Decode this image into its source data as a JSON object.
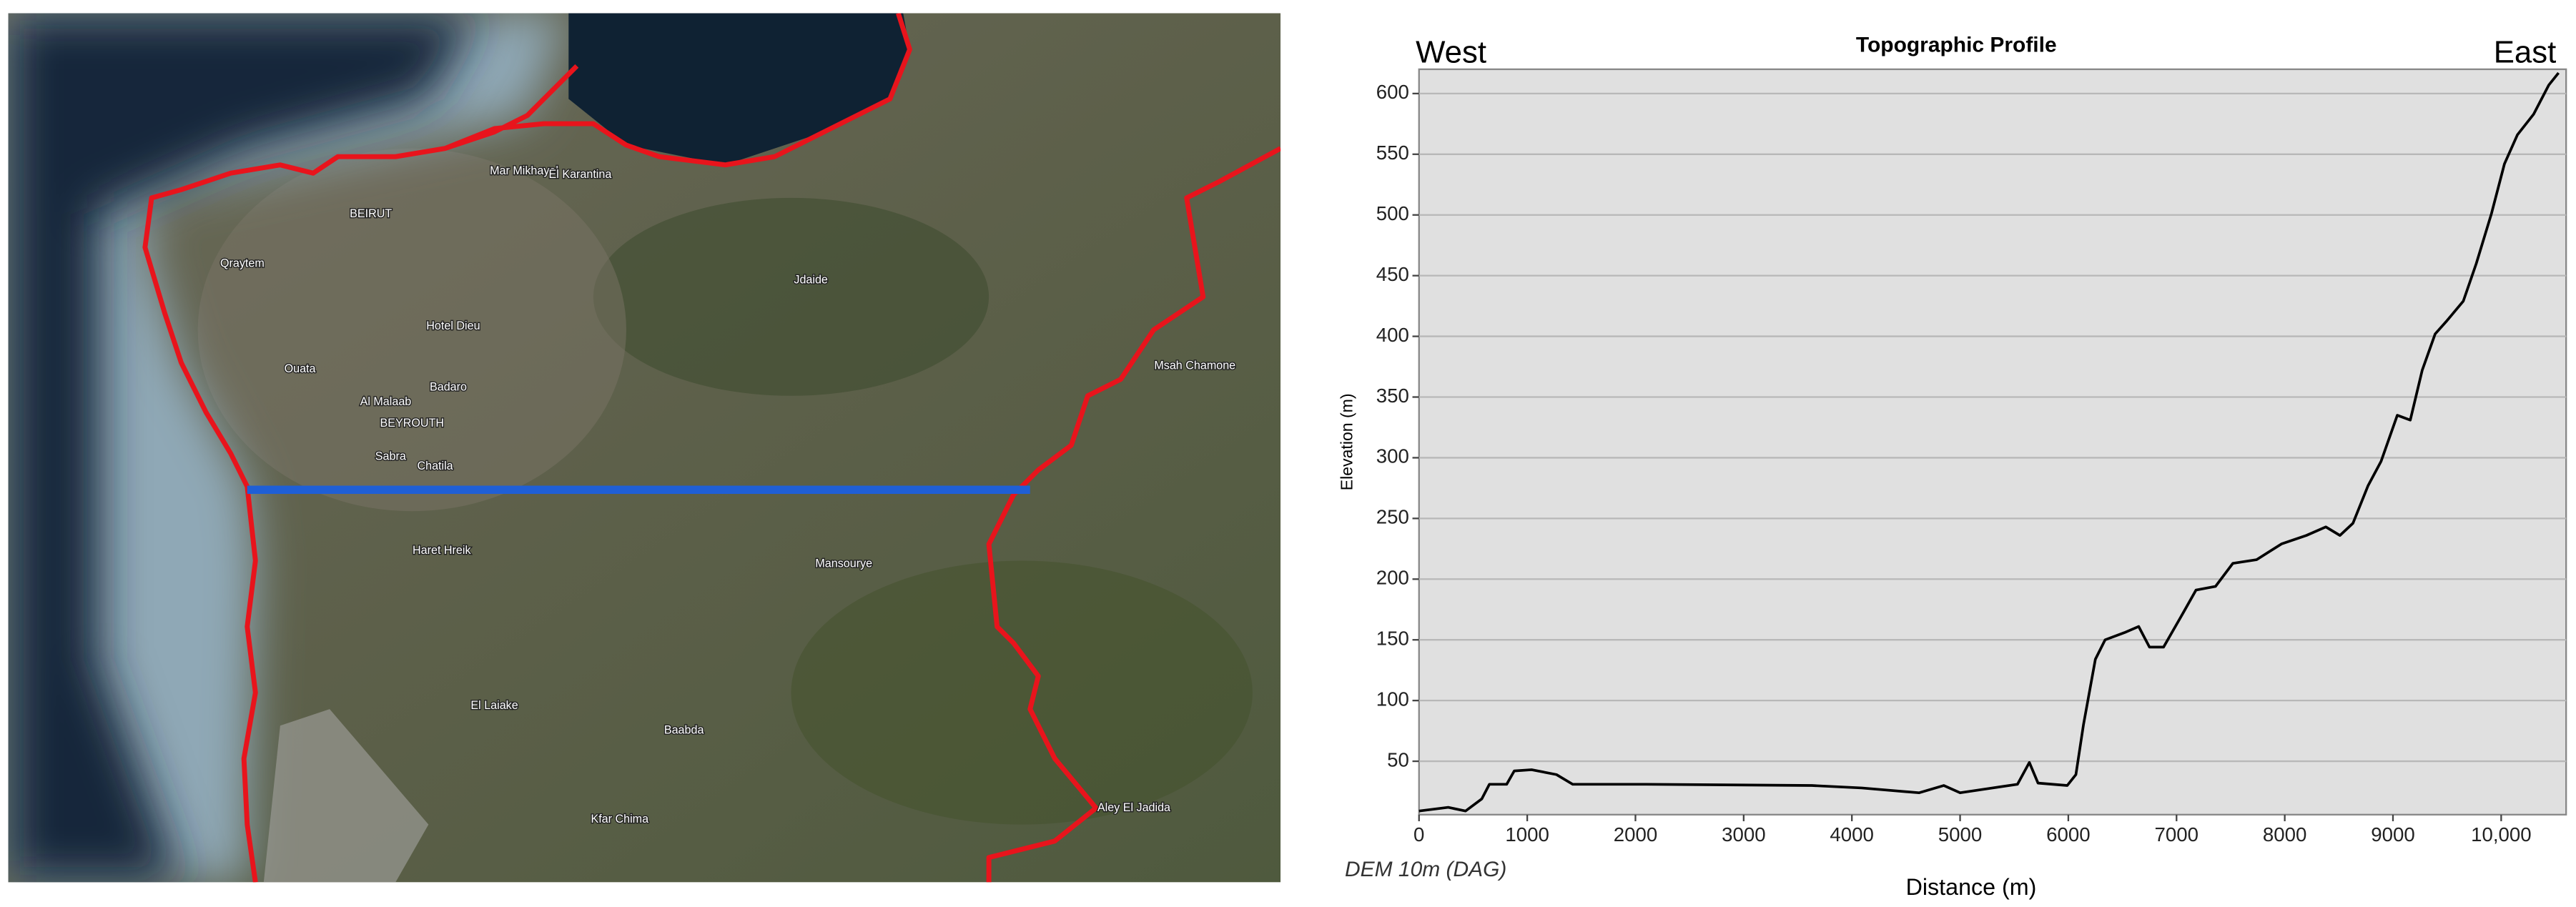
{
  "map": {
    "labels": [
      "Mar Mikhayel",
      "El Karantina",
      "BEIRUT",
      "Qraytem",
      "Jdaide",
      "Hotel Dieu",
      "Ouata",
      "Badaro",
      "Al Malaab",
      "BEYROUTH",
      "Sabra",
      "Chatila",
      "Haret Hreik",
      "Mansourye",
      "El Laiake",
      "Baabda",
      "Kfar Chima",
      "Msah Chamone",
      "Aley El Jadida"
    ]
  },
  "chart_data": {
    "type": "line",
    "title": "Topographic Profile",
    "x_label": "Distance (m)",
    "y_label": "Elevation (m)",
    "annotations": [
      "West",
      "East",
      "DEM 10m (DAG)"
    ],
    "x": [
      0,
      270,
      430,
      580,
      650,
      810,
      880,
      1040,
      1270,
      1420,
      2100,
      3630,
      4090,
      4620,
      4850,
      5000,
      5300,
      5530,
      5640,
      5720,
      5990,
      6070,
      6140,
      6250,
      6340,
      6520,
      6650,
      6750,
      6880,
      7060,
      7180,
      7360,
      7520,
      7740,
      7970,
      8200,
      8380,
      8510,
      8630,
      8770,
      8890,
      9040,
      9160,
      9270,
      9390,
      9500,
      9650,
      9770,
      9910,
      10030,
      10150,
      10300,
      10440,
      10530
    ],
    "series": [
      {
        "name": "Elevation",
        "color": "#000000",
        "values": [
          9,
          12,
          9,
          19,
          31,
          31,
          42,
          43,
          39,
          31,
          31,
          30,
          28,
          24,
          30,
          24,
          28,
          31,
          49,
          32,
          30,
          39,
          80,
          134,
          150,
          156,
          161,
          144,
          144,
          172,
          191,
          194,
          213,
          216,
          229,
          236,
          243,
          236,
          246,
          277,
          297,
          335,
          331,
          372,
          402,
          413,
          429,
          460,
          501,
          542,
          566,
          583,
          607,
          617
        ]
      }
    ],
    "xlim": [
      0,
      10600
    ],
    "ylim": [
      6,
      620
    ],
    "xticks": [
      0,
      1000,
      2000,
      3000,
      4000,
      5000,
      6000,
      7000,
      8000,
      9000,
      {
        "value": 10000,
        "label": "10,000"
      }
    ],
    "yticks": [
      50,
      100,
      150,
      200,
      250,
      300,
      350,
      400,
      450,
      500,
      550,
      600
    ],
    "grid": true
  }
}
